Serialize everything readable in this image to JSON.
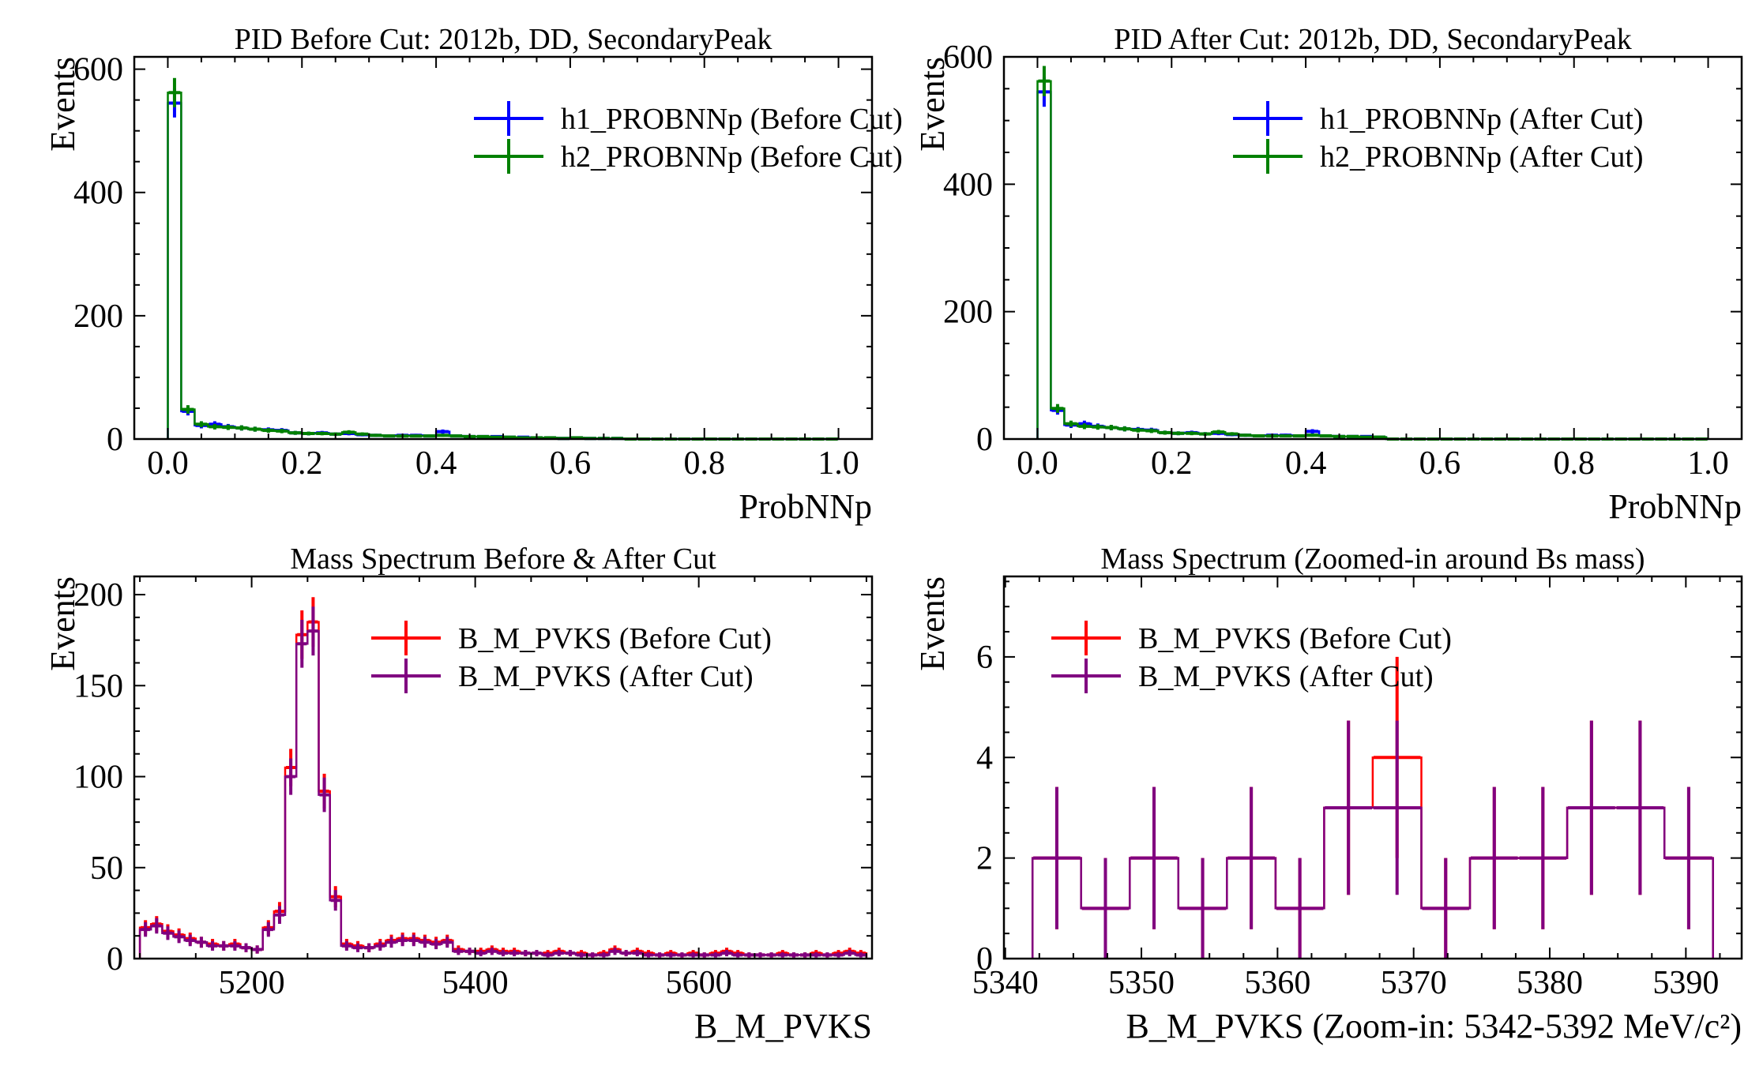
{
  "colors": {
    "blue": "#0000ff",
    "green": "#008000",
    "red": "#ff0000",
    "purple": "#800080"
  },
  "chart_data": [
    {
      "type": "histogram",
      "title": "PID Before Cut: 2012b, DD, SecondaryPeak",
      "xlabel": "ProbNNp",
      "ylabel": "Events",
      "xlim": [
        -0.05,
        1.05
      ],
      "ylim": [
        0,
        620
      ],
      "xticks": [
        0.0,
        0.2,
        0.4,
        0.6,
        0.8,
        1.0
      ],
      "xtick_labels": [
        "0.0",
        "0.2",
        "0.4",
        "0.6",
        "0.8",
        "1.0"
      ],
      "yticks": [
        0,
        200,
        400,
        600
      ],
      "ytick_labels": [
        "0",
        "200",
        "400",
        "600"
      ],
      "legend_position": "upper-right",
      "bins": {
        "start": 0.0,
        "width": 0.02
      },
      "series": [
        {
          "name": "h1_PROBNNp (Before Cut)",
          "color": "blue",
          "errorbars": true,
          "values": [
            545,
            45,
            22,
            24,
            20,
            18,
            16,
            15,
            14,
            10,
            9,
            10,
            8,
            9,
            7,
            6,
            5,
            6,
            6,
            5,
            12,
            5,
            4,
            4,
            4,
            3,
            3,
            2,
            2,
            1,
            2,
            1,
            1,
            1,
            0,
            0,
            0,
            0,
            0,
            0,
            0,
            0,
            0,
            0,
            0,
            0,
            0,
            0,
            0,
            0
          ]
        },
        {
          "name": "h2_PROBNNp (Before Cut)",
          "color": "green",
          "errorbars": true,
          "values": [
            562,
            48,
            24,
            20,
            19,
            18,
            16,
            14,
            13,
            10,
            9,
            9,
            8,
            11,
            8,
            6,
            5,
            5,
            5,
            5,
            6,
            5,
            4,
            4,
            3,
            3,
            2,
            2,
            2,
            1,
            2,
            1,
            1,
            1,
            0,
            0,
            0,
            0,
            0,
            0,
            0,
            0,
            0,
            0,
            0,
            0,
            0,
            0,
            0,
            0
          ]
        }
      ]
    },
    {
      "type": "histogram",
      "title": "PID After Cut: 2012b, DD, SecondaryPeak",
      "xlabel": "ProbNNp",
      "ylabel": "Events",
      "xlim": [
        -0.05,
        1.05
      ],
      "ylim": [
        0,
        600
      ],
      "xticks": [
        0.0,
        0.2,
        0.4,
        0.6,
        0.8,
        1.0
      ],
      "xtick_labels": [
        "0.0",
        "0.2",
        "0.4",
        "0.6",
        "0.8",
        "1.0"
      ],
      "yticks": [
        0,
        200,
        400,
        600
      ],
      "ytick_labels": [
        "0",
        "200",
        "400",
        "600"
      ],
      "legend_position": "upper-right",
      "bins": {
        "start": 0.0,
        "width": 0.02
      },
      "series": [
        {
          "name": "h1_PROBNNp (After Cut)",
          "color": "blue",
          "errorbars": true,
          "values": [
            545,
            45,
            22,
            24,
            20,
            18,
            16,
            15,
            14,
            10,
            9,
            10,
            8,
            9,
            7,
            6,
            5,
            6,
            6,
            5,
            12,
            5,
            4,
            4,
            4,
            3,
            0,
            0,
            0,
            0,
            0,
            0,
            0,
            0,
            0,
            0,
            0,
            0,
            0,
            0,
            0,
            0,
            0,
            0,
            0,
            0,
            0,
            0,
            0,
            0
          ]
        },
        {
          "name": "h2_PROBNNp (After Cut)",
          "color": "green",
          "errorbars": true,
          "values": [
            562,
            48,
            24,
            20,
            19,
            18,
            16,
            14,
            13,
            10,
            9,
            9,
            8,
            11,
            8,
            6,
            5,
            5,
            5,
            5,
            6,
            5,
            4,
            4,
            3,
            3,
            0,
            0,
            0,
            0,
            0,
            0,
            0,
            0,
            0,
            0,
            0,
            0,
            0,
            0,
            0,
            0,
            0,
            0,
            0,
            0,
            0,
            0,
            0,
            0
          ]
        }
      ]
    },
    {
      "type": "histogram",
      "title": "Mass Spectrum Before & After Cut",
      "xlabel": "B_M_PVKS",
      "ylabel": "Events",
      "xlim": [
        5095,
        5755
      ],
      "ylim": [
        0,
        210
      ],
      "xticks": [
        5200,
        5400,
        5600
      ],
      "xtick_labels": [
        "5200",
        "5400",
        "5600"
      ],
      "yticks": [
        0,
        50,
        100,
        150,
        200
      ],
      "ytick_labels": [
        "0",
        "50",
        "100",
        "150",
        "200"
      ],
      "legend_position": "upper-right",
      "bins": {
        "start": 5100,
        "width": 10
      },
      "series": [
        {
          "name": "B_M_PVKS (Before Cut)",
          "color": "red",
          "errorbars": true,
          "values": [
            17,
            19,
            15,
            13,
            11,
            9,
            8,
            7,
            8,
            6,
            5,
            17,
            26,
            105,
            178,
            185,
            92,
            34,
            8,
            7,
            6,
            8,
            10,
            11,
            11,
            10,
            9,
            10,
            5,
            4,
            4,
            5,
            4,
            4,
            3,
            3,
            3,
            4,
            3,
            3,
            2,
            3,
            5,
            3,
            4,
            3,
            2,
            3,
            2,
            3,
            2,
            3,
            4,
            3,
            2,
            2,
            2,
            3,
            2,
            2,
            3,
            2,
            3,
            4,
            3
          ]
        },
        {
          "name": "B_M_PVKS (After Cut)",
          "color": "purple",
          "errorbars": true,
          "values": [
            16,
            18,
            14,
            12,
            10,
            9,
            7,
            7,
            7,
            6,
            5,
            16,
            24,
            100,
            173,
            180,
            90,
            32,
            7,
            6,
            6,
            7,
            9,
            10,
            10,
            9,
            8,
            9,
            4,
            4,
            3,
            4,
            3,
            3,
            3,
            3,
            2,
            3,
            3,
            2,
            2,
            2,
            4,
            3,
            3,
            2,
            2,
            2,
            2,
            2,
            2,
            2,
            3,
            2,
            2,
            2,
            2,
            2,
            2,
            2,
            2,
            2,
            2,
            3,
            2
          ]
        }
      ]
    },
    {
      "type": "histogram",
      "title": "Mass Spectrum (Zoomed-in around Bs mass)",
      "xlabel": "B_M_PVKS (Zoom-in: 5342-5392 MeV/c²)",
      "ylabel": "Events",
      "xlim": [
        5339.9,
        5394.1
      ],
      "ylim": [
        0,
        7.6
      ],
      "xticks": [
        5340,
        5350,
        5360,
        5370,
        5380,
        5390
      ],
      "xtick_labels": [
        "5340",
        "5350",
        "5360",
        "5370",
        "5380",
        "5390"
      ],
      "yticks": [
        0,
        2,
        4,
        6
      ],
      "ytick_labels": [
        "0",
        "2",
        "4",
        "6"
      ],
      "legend_position": "upper-left",
      "bins": {
        "start": 5342,
        "width": 3.571
      },
      "series": [
        {
          "name": "B_M_PVKS (Before Cut)",
          "color": "red",
          "errorbars": true,
          "values": [
            2,
            1,
            2,
            1,
            2,
            1,
            3,
            4,
            1,
            2,
            2,
            3,
            3,
            2
          ]
        },
        {
          "name": "B_M_PVKS (After Cut)",
          "color": "purple",
          "errorbars": true,
          "values": [
            2,
            1,
            2,
            1,
            2,
            1,
            3,
            3,
            1,
            2,
            2,
            3,
            3,
            2
          ]
        }
      ]
    }
  ]
}
